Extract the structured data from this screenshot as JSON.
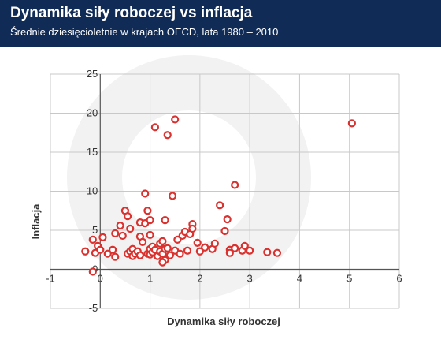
{
  "header": {
    "title": "Dynamika siły roboczej vs inflacja",
    "subtitle": "Średnie dziesięcioletnie w krajach OECD, lata 1980 – 2010"
  },
  "colors": {
    "header_bg": "#102b55",
    "marker": "#d9322f",
    "grid": "#c8c8c8",
    "axis": "#555555",
    "watermark": "#f2f2f2"
  },
  "chart_data": {
    "type": "scatter",
    "title": "Dynamika siły roboczej vs inflacja",
    "subtitle": "Średnie dziesięcioletnie w krajach OECD, lata 1980 – 2010",
    "xlabel": "Dynamika siły roboczej",
    "ylabel": "Inflacja",
    "xlim": [
      -1,
      6
    ],
    "ylim": [
      -5,
      25
    ],
    "xticks": [
      -1,
      0,
      1,
      2,
      3,
      4,
      5,
      6
    ],
    "yticks": [
      -5,
      0,
      5,
      10,
      15,
      20,
      25
    ],
    "grid": true,
    "series": [
      {
        "marker": "hollow-circle",
        "points": [
          [
            -0.3,
            2.3
          ],
          [
            -0.15,
            3.8
          ],
          [
            -0.1,
            2.1
          ],
          [
            -0.05,
            3.0
          ],
          [
            0.0,
            2.5
          ],
          [
            0.05,
            4.1
          ],
          [
            0.15,
            2.0
          ],
          [
            -0.15,
            -0.3
          ],
          [
            0.25,
            2.5
          ],
          [
            0.3,
            1.6
          ],
          [
            0.3,
            4.6
          ],
          [
            0.4,
            5.6
          ],
          [
            0.45,
            4.3
          ],
          [
            0.5,
            7.5
          ],
          [
            0.55,
            6.8
          ],
          [
            0.6,
            5.2
          ],
          [
            0.55,
            2.0
          ],
          [
            0.6,
            2.3
          ],
          [
            0.65,
            2.6
          ],
          [
            0.65,
            1.7
          ],
          [
            0.7,
            2.0
          ],
          [
            0.75,
            2.3
          ],
          [
            0.8,
            1.8
          ],
          [
            0.8,
            4.2
          ],
          [
            0.85,
            3.5
          ],
          [
            0.8,
            6.0
          ],
          [
            0.9,
            5.9
          ],
          [
            0.95,
            7.5
          ],
          [
            0.9,
            9.7
          ],
          [
            0.95,
            2.0
          ],
          [
            1.0,
            2.6
          ],
          [
            1.0,
            1.9
          ],
          [
            1.05,
            2.2
          ],
          [
            1.0,
            4.4
          ],
          [
            1.0,
            6.3
          ],
          [
            1.05,
            2.9
          ],
          [
            1.1,
            2.5
          ],
          [
            1.15,
            1.7
          ],
          [
            1.2,
            2.3
          ],
          [
            1.2,
            3.3
          ],
          [
            1.25,
            2.0
          ],
          [
            1.25,
            3.6
          ],
          [
            1.3,
            1.2
          ],
          [
            1.3,
            2.6
          ],
          [
            1.3,
            6.3
          ],
          [
            1.35,
            2.7
          ],
          [
            1.4,
            1.8
          ],
          [
            1.5,
            2.4
          ],
          [
            1.55,
            3.8
          ],
          [
            1.6,
            2.0
          ],
          [
            1.65,
            4.3
          ],
          [
            1.7,
            4.8
          ],
          [
            1.75,
            2.4
          ],
          [
            1.8,
            4.5
          ],
          [
            1.85,
            5.8
          ],
          [
            1.85,
            5.2
          ],
          [
            1.95,
            3.4
          ],
          [
            2.0,
            2.3
          ],
          [
            2.1,
            2.8
          ],
          [
            2.25,
            2.6
          ],
          [
            2.3,
            3.3
          ],
          [
            2.4,
            8.2
          ],
          [
            2.5,
            4.9
          ],
          [
            2.55,
            6.4
          ],
          [
            2.6,
            2.5
          ],
          [
            2.6,
            2.1
          ],
          [
            2.7,
            10.8
          ],
          [
            2.7,
            2.7
          ],
          [
            2.85,
            2.4
          ],
          [
            2.9,
            3.0
          ],
          [
            3.0,
            2.4
          ],
          [
            3.35,
            2.2
          ],
          [
            3.55,
            2.1
          ],
          [
            1.1,
            18.2
          ],
          [
            1.35,
            17.2
          ],
          [
            1.5,
            19.2
          ],
          [
            1.45,
            9.4
          ],
          [
            5.05,
            18.7
          ],
          [
            1.25,
            0.9
          ]
        ]
      }
    ]
  }
}
